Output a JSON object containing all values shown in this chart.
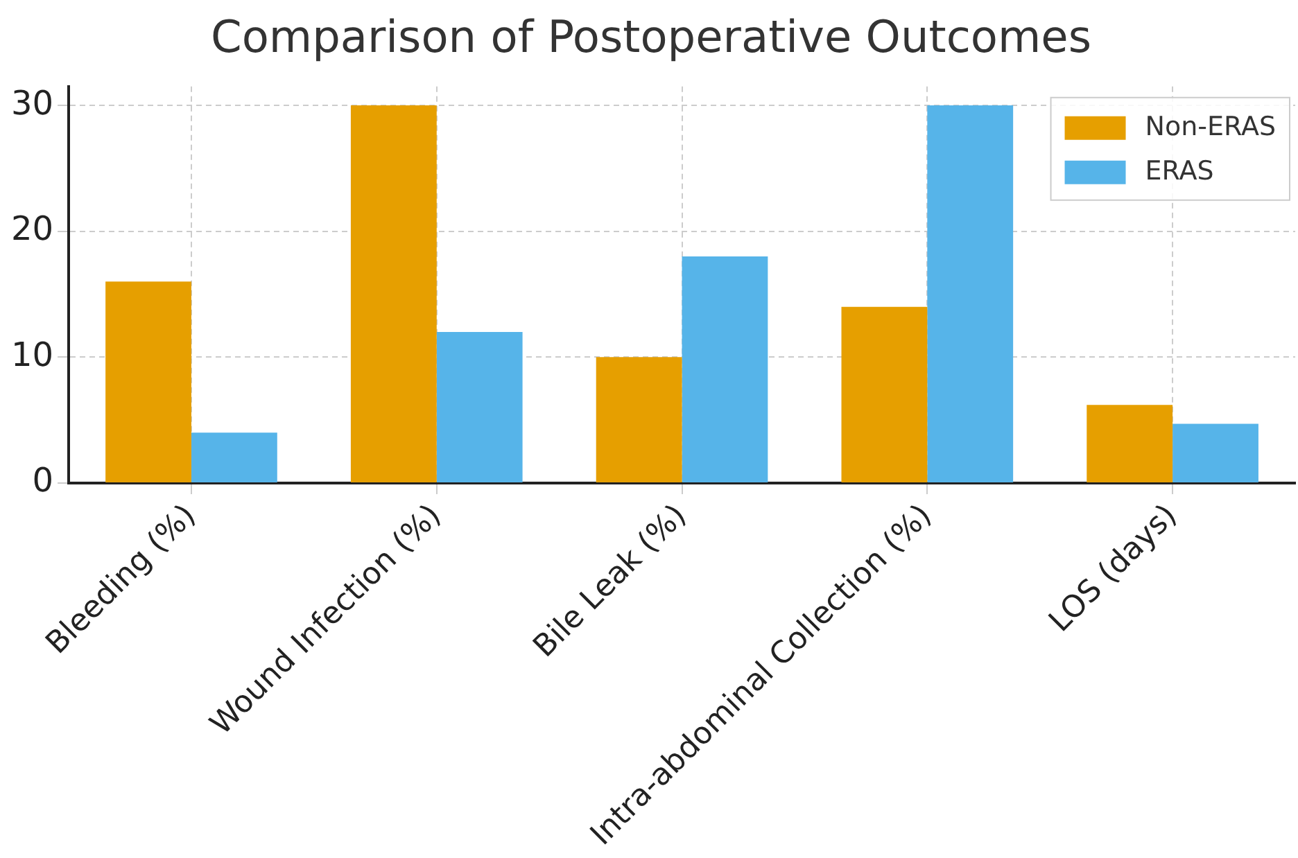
{
  "chart_data": {
    "type": "bar",
    "title": "Comparison of Postoperative Outcomes",
    "categories": [
      "Bleeding (%)",
      "Wound Infection (%)",
      "Bile Leak (%)",
      "Intra-abdominal Collection (%)",
      "LOS (days)"
    ],
    "series": [
      {
        "name": "Non-ERAS",
        "color": "#e69f00",
        "values": [
          16,
          30,
          10,
          14,
          6.2
        ]
      },
      {
        "name": "ERAS",
        "color": "#56b4e9",
        "values": [
          4,
          12,
          18,
          30,
          4.7
        ]
      }
    ],
    "ylim": [
      0,
      31.5
    ],
    "yticks": [
      0,
      10,
      20,
      30
    ],
    "grid": true,
    "legend": "top right"
  }
}
